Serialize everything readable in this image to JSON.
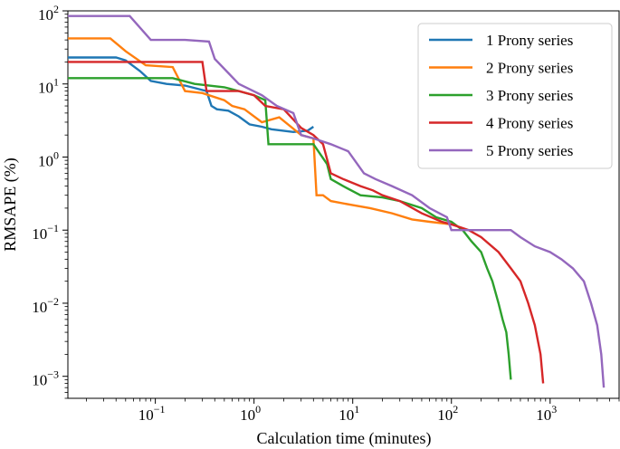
{
  "chart_data": {
    "type": "line",
    "xlabel": "Calculation time (minutes)",
    "ylabel": "RMSAPE (%)",
    "xscale": "log",
    "yscale": "log",
    "xlim": [
      0.013,
      5000
    ],
    "ylim": [
      0.0005,
      100
    ],
    "grid": false,
    "legend_position": "top-right",
    "x_ticks": [
      {
        "value": 0.1,
        "base": "10",
        "exp": "−1"
      },
      {
        "value": 1,
        "base": "10",
        "exp": "0"
      },
      {
        "value": 10,
        "base": "10",
        "exp": "1"
      },
      {
        "value": 100,
        "base": "10",
        "exp": "2"
      },
      {
        "value": 1000,
        "base": "10",
        "exp": "3"
      }
    ],
    "y_ticks": [
      {
        "value": 0.001,
        "base": "10",
        "exp": "−3"
      },
      {
        "value": 0.01,
        "base": "10",
        "exp": "−2"
      },
      {
        "value": 0.1,
        "base": "10",
        "exp": "−1"
      },
      {
        "value": 1,
        "base": "10",
        "exp": "0"
      },
      {
        "value": 10,
        "base": "10",
        "exp": "1"
      },
      {
        "value": 100,
        "base": "10",
        "exp": "2"
      }
    ],
    "series": [
      {
        "name": "1 Prony series",
        "color": "#1f77b4",
        "points": [
          [
            0.013,
            23
          ],
          [
            0.04,
            23
          ],
          [
            0.05,
            21
          ],
          [
            0.07,
            15
          ],
          [
            0.09,
            11
          ],
          [
            0.13,
            10
          ],
          [
            0.2,
            9.5
          ],
          [
            0.33,
            8
          ],
          [
            0.37,
            5
          ],
          [
            0.42,
            4.5
          ],
          [
            0.55,
            4.3
          ],
          [
            0.7,
            3.6
          ],
          [
            0.9,
            2.8
          ],
          [
            1.2,
            2.6
          ],
          [
            1.5,
            2.4
          ],
          [
            2.5,
            2.2
          ],
          [
            3.5,
            2.3
          ],
          [
            4,
            2.6
          ]
        ]
      },
      {
        "name": "2 Prony series",
        "color": "#ff7f0e",
        "points": [
          [
            0.013,
            42
          ],
          [
            0.035,
            42
          ],
          [
            0.05,
            28
          ],
          [
            0.08,
            18
          ],
          [
            0.15,
            17
          ],
          [
            0.2,
            8
          ],
          [
            0.3,
            7.5
          ],
          [
            0.5,
            6
          ],
          [
            0.6,
            5
          ],
          [
            0.8,
            4.5
          ],
          [
            1.2,
            3
          ],
          [
            1.8,
            3.5
          ],
          [
            3,
            2
          ],
          [
            4,
            1.8
          ],
          [
            4.3,
            0.3
          ],
          [
            5,
            0.3
          ],
          [
            6,
            0.25
          ],
          [
            10,
            0.22
          ],
          [
            15,
            0.2
          ],
          [
            25,
            0.17
          ],
          [
            40,
            0.14
          ],
          [
            60,
            0.13
          ],
          [
            100,
            0.12
          ]
        ]
      },
      {
        "name": "3 Prony series",
        "color": "#2ca02c",
        "points": [
          [
            0.013,
            12
          ],
          [
            0.15,
            12
          ],
          [
            0.25,
            10
          ],
          [
            0.5,
            9
          ],
          [
            0.7,
            8
          ],
          [
            1,
            7
          ],
          [
            1.3,
            6
          ],
          [
            1.4,
            1.5
          ],
          [
            3,
            1.5
          ],
          [
            4,
            1.5
          ],
          [
            5.5,
            0.8
          ],
          [
            6,
            0.5
          ],
          [
            8,
            0.4
          ],
          [
            12,
            0.3
          ],
          [
            20,
            0.28
          ],
          [
            30,
            0.25
          ],
          [
            50,
            0.2
          ],
          [
            70,
            0.15
          ],
          [
            100,
            0.13
          ],
          [
            130,
            0.1
          ],
          [
            160,
            0.07
          ],
          [
            200,
            0.05
          ],
          [
            230,
            0.03
          ],
          [
            260,
            0.02
          ],
          [
            300,
            0.01
          ],
          [
            330,
            0.006
          ],
          [
            360,
            0.004
          ],
          [
            380,
            0.002
          ],
          [
            400,
            0.0009
          ]
        ]
      },
      {
        "name": "4 Prony series",
        "color": "#d62728",
        "points": [
          [
            0.013,
            20
          ],
          [
            0.3,
            20
          ],
          [
            0.33,
            8
          ],
          [
            0.7,
            8
          ],
          [
            1,
            7
          ],
          [
            1.3,
            5
          ],
          [
            2,
            4.5
          ],
          [
            3,
            2.5
          ],
          [
            4,
            2
          ],
          [
            5,
            1.5
          ],
          [
            6,
            0.6
          ],
          [
            8,
            0.5
          ],
          [
            12,
            0.4
          ],
          [
            16,
            0.35
          ],
          [
            20,
            0.3
          ],
          [
            30,
            0.25
          ],
          [
            50,
            0.17
          ],
          [
            80,
            0.13
          ],
          [
            100,
            0.12
          ],
          [
            150,
            0.1
          ],
          [
            200,
            0.08
          ],
          [
            300,
            0.05
          ],
          [
            400,
            0.03
          ],
          [
            500,
            0.02
          ],
          [
            600,
            0.01
          ],
          [
            700,
            0.005
          ],
          [
            800,
            0.002
          ],
          [
            850,
            0.0008
          ]
        ]
      },
      {
        "name": "5 Prony series",
        "color": "#9467bd",
        "points": [
          [
            0.013,
            85
          ],
          [
            0.055,
            85
          ],
          [
            0.09,
            40
          ],
          [
            0.2,
            40
          ],
          [
            0.35,
            38
          ],
          [
            0.4,
            22
          ],
          [
            0.7,
            10
          ],
          [
            1.2,
            7
          ],
          [
            1.7,
            5
          ],
          [
            2.5,
            4
          ],
          [
            3,
            2
          ],
          [
            4,
            1.8
          ],
          [
            6,
            1.5
          ],
          [
            9,
            1.2
          ],
          [
            13,
            0.6
          ],
          [
            17,
            0.5
          ],
          [
            25,
            0.4
          ],
          [
            40,
            0.3
          ],
          [
            60,
            0.2
          ],
          [
            90,
            0.15
          ],
          [
            100,
            0.1
          ],
          [
            200,
            0.1
          ],
          [
            400,
            0.1
          ],
          [
            500,
            0.08
          ],
          [
            700,
            0.06
          ],
          [
            1000,
            0.05
          ],
          [
            1300,
            0.04
          ],
          [
            1700,
            0.03
          ],
          [
            2200,
            0.02
          ],
          [
            2600,
            0.01
          ],
          [
            3000,
            0.005
          ],
          [
            3300,
            0.002
          ],
          [
            3500,
            0.0007
          ]
        ]
      }
    ]
  }
}
